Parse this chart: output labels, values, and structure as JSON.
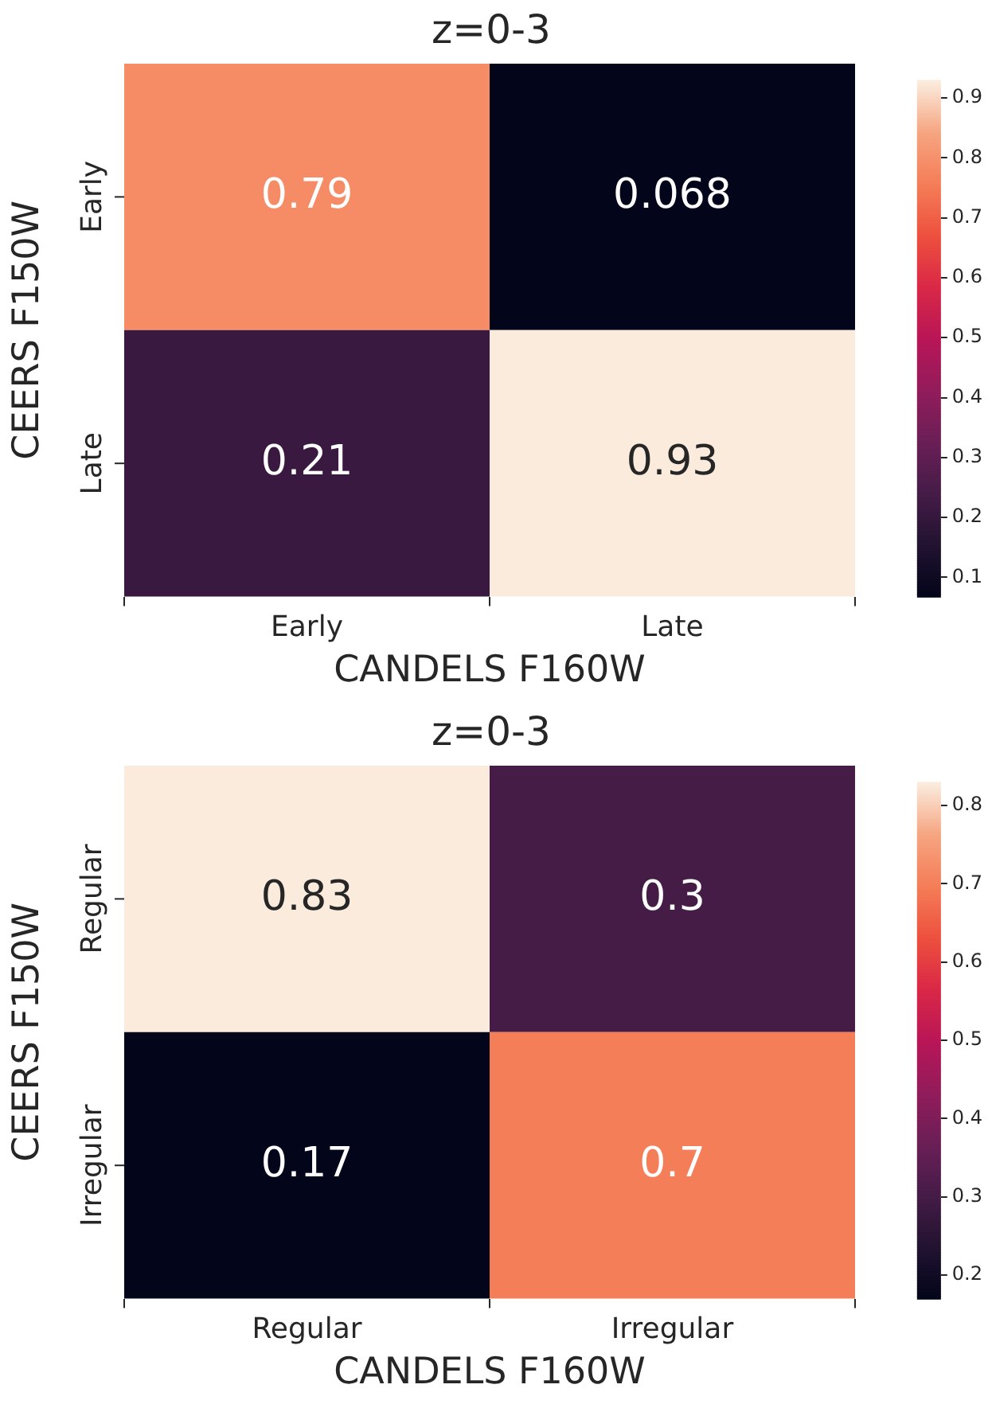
{
  "chart_data": [
    {
      "type": "heatmap",
      "title": "z=0-3",
      "xlabel": "CANDELS F160W",
      "ylabel": "CEERS F150W",
      "categories": [
        "Early",
        "Late"
      ],
      "y_categories": [
        "Early",
        "Late"
      ],
      "cells": [
        [
          0.79,
          0.068
        ],
        [
          0.21,
          0.93
        ]
      ],
      "data_labels": true,
      "clim": [
        0.068,
        0.93
      ],
      "cticks": [
        0.1,
        0.2,
        0.3,
        0.4,
        0.5,
        0.6,
        0.7,
        0.8,
        0.9
      ]
    },
    {
      "type": "heatmap",
      "title": "z=0-3",
      "xlabel": "CANDELS F160W",
      "ylabel": "CEERS F150W",
      "categories": [
        "Regular",
        "Irregular"
      ],
      "y_categories": [
        "Regular",
        "Irregular"
      ],
      "cells": [
        [
          0.83,
          0.3
        ],
        [
          0.17,
          0.7
        ]
      ],
      "data_labels": true,
      "clim": [
        0.17,
        0.83
      ],
      "cticks": [
        0.2,
        0.3,
        0.4,
        0.5,
        0.6,
        0.7,
        0.8
      ]
    }
  ]
}
